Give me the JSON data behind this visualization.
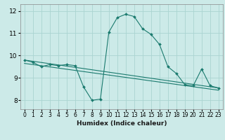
{
  "title": "",
  "xlabel": "Humidex (Indice chaleur)",
  "ylabel": "",
  "bg_color": "#cceae8",
  "line_color": "#1a7a6e",
  "grid_color": "#aad4d1",
  "xlim": [
    -0.5,
    23.5
  ],
  "ylim": [
    7.6,
    12.3
  ],
  "yticks": [
    8,
    9,
    10,
    11,
    12
  ],
  "xticks": [
    0,
    1,
    2,
    3,
    4,
    5,
    6,
    7,
    8,
    9,
    10,
    11,
    12,
    13,
    14,
    15,
    16,
    17,
    18,
    19,
    20,
    21,
    22,
    23
  ],
  "series_main": {
    "x": [
      0,
      1,
      2,
      3,
      4,
      5,
      6,
      7,
      8,
      9,
      10,
      11,
      12,
      13,
      14,
      15,
      16,
      17,
      18,
      19,
      20,
      21,
      22,
      23
    ],
    "y": [
      9.8,
      9.7,
      9.5,
      9.6,
      9.55,
      9.6,
      9.55,
      8.6,
      8.0,
      8.05,
      11.05,
      11.7,
      11.85,
      11.75,
      11.2,
      10.95,
      10.5,
      9.5,
      9.2,
      8.7,
      8.65,
      9.4,
      8.65,
      8.55
    ]
  },
  "series_line1": {
    "x": [
      0,
      23
    ],
    "y": [
      9.8,
      8.55
    ]
  },
  "series_line2": {
    "x": [
      0,
      23
    ],
    "y": [
      9.65,
      8.45
    ]
  },
  "xlabel_fontsize": 6.5,
  "tick_fontsize": 5.5,
  "ytick_fontsize": 6.5
}
